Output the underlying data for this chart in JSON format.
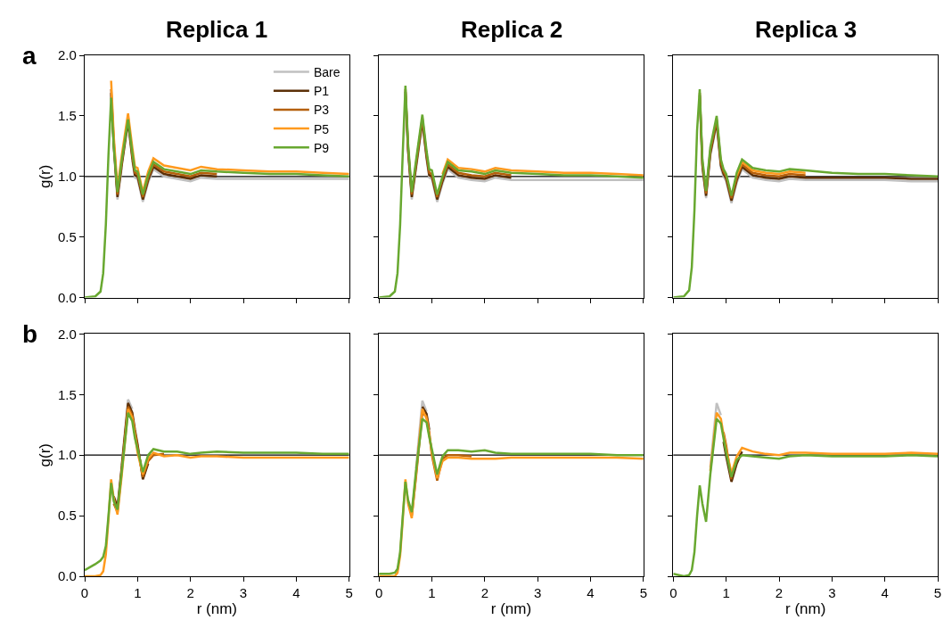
{
  "chart_data": [
    {
      "type": "line",
      "title": "Replica 1",
      "ylabel": "g(r)",
      "annotations": [
        "a"
      ],
      "legend": "top right",
      "tick_labels": "y",
      "xlim": [
        0,
        5
      ],
      "ylim": [
        0,
        2
      ],
      "xticks": [
        0,
        1,
        2,
        3,
        4,
        5
      ],
      "yticks": [
        {
          "value": 0,
          "label": "0.0"
        },
        {
          "value": 0.5,
          "label": "0.5"
        },
        {
          "value": 1,
          "label": "1.0"
        },
        {
          "value": 1.5,
          "label": "1.5"
        },
        {
          "value": 2,
          "label": "2.0"
        }
      ],
      "ref_lines": [
        {
          "axis": "y",
          "value": 1,
          "color": "#000000"
        }
      ],
      "x": [
        0,
        0.2,
        0.3,
        0.35,
        0.4,
        0.45,
        0.5,
        0.55,
        0.62,
        0.7,
        0.82,
        0.9,
        0.95,
        1.0,
        1.1,
        1.2,
        1.3,
        1.5,
        1.75,
        2.0,
        2.2,
        2.5,
        3,
        3.5,
        4,
        4.5,
        5
      ],
      "series": [
        {
          "name": "Bare",
          "color": "#c0c0c0",
          "values": [
            null,
            null,
            null,
            null,
            null,
            null,
            1.67,
            1.23,
            0.81,
            1.07,
            null,
            1.13,
            0.99,
            0.98,
            0.79,
            0.95,
            1.06,
            1.0,
            0.98,
            0.96,
            0.99,
            0.98,
            0.98,
            0.98,
            0.98,
            0.98,
            0.98
          ]
        },
        {
          "name": "P1",
          "color": "#5c3008",
          "values": [
            null,
            null,
            null,
            null,
            null,
            null,
            1.69,
            1.26,
            0.83,
            1.09,
            1.45,
            1.15,
            1.01,
            1.0,
            0.81,
            0.97,
            1.08,
            1.02,
            1.0,
            0.98,
            1.01,
            1.0,
            null,
            null,
            null,
            null,
            null
          ]
        },
        {
          "name": "P3",
          "color": "#b5600c",
          "values": [
            null,
            null,
            null,
            null,
            null,
            null,
            1.72,
            1.29,
            0.85,
            1.11,
            1.49,
            1.17,
            1.03,
            1.02,
            0.83,
            0.99,
            1.1,
            1.04,
            1.02,
            1.0,
            1.03,
            1.02,
            null,
            null,
            null,
            null,
            null
          ]
        },
        {
          "name": "P5",
          "color": "#ff9a1e",
          "values": [
            null,
            null,
            null,
            null,
            null,
            null,
            1.79,
            1.33,
            0.9,
            1.17,
            1.52,
            1.24,
            1.08,
            1.07,
            0.87,
            1.04,
            1.15,
            1.09,
            1.07,
            1.05,
            1.08,
            1.06,
            1.05,
            1.04,
            1.04,
            1.03,
            1.02
          ]
        },
        {
          "name": "P9",
          "color": "#68a830",
          "values": [
            0,
            0.01,
            0.05,
            0.2,
            0.6,
            1.18,
            1.65,
            1.25,
            0.87,
            1.13,
            1.47,
            1.2,
            1.05,
            1.04,
            0.85,
            1.01,
            1.12,
            1.06,
            1.04,
            1.02,
            1.05,
            1.04,
            1.03,
            1.02,
            1.02,
            1.01,
            1.0
          ]
        }
      ]
    },
    {
      "type": "line",
      "title": "Replica 2",
      "tick_labels": false,
      "xlim": [
        0,
        5
      ],
      "ylim": [
        0,
        2
      ],
      "xticks": [
        0,
        1,
        2,
        3,
        4,
        5
      ],
      "yticks": [
        0,
        0.5,
        1,
        1.5,
        2
      ],
      "ref_lines": [
        {
          "axis": "y",
          "value": 1,
          "color": "#000000"
        }
      ],
      "x": [
        0,
        0.2,
        0.3,
        0.35,
        0.4,
        0.45,
        0.5,
        0.55,
        0.62,
        0.7,
        0.82,
        0.9,
        0.95,
        1.0,
        1.1,
        1.2,
        1.3,
        1.5,
        1.75,
        2.0,
        2.2,
        2.5,
        3,
        3.5,
        4,
        4.5,
        5
      ],
      "series": [
        {
          "color": "#c0c0c0",
          "values": [
            null,
            null,
            null,
            null,
            null,
            null,
            1.68,
            1.2,
            0.81,
            1.06,
            1.44,
            1.14,
            0.99,
            0.98,
            0.79,
            0.94,
            1.06,
            0.99,
            0.97,
            0.96,
            0.99,
            0.97,
            0.97,
            0.97,
            0.97,
            0.97,
            0.97
          ]
        },
        {
          "color": "#5c3008",
          "values": [
            null,
            null,
            null,
            null,
            null,
            null,
            1.7,
            1.22,
            0.83,
            1.08,
            1.46,
            1.16,
            1.01,
            1.0,
            0.81,
            0.96,
            1.08,
            1.01,
            0.99,
            0.98,
            1.01,
            0.99,
            null,
            null,
            null,
            null,
            null
          ]
        },
        {
          "color": "#b5600c",
          "values": [
            null,
            null,
            null,
            null,
            null,
            null,
            1.72,
            1.24,
            0.85,
            1.1,
            1.48,
            1.18,
            1.03,
            1.02,
            0.83,
            0.98,
            1.1,
            1.03,
            1.01,
            1.0,
            1.03,
            1.01,
            null,
            null,
            null,
            null,
            null
          ]
        },
        {
          "color": "#ff9a1e",
          "values": [
            null,
            null,
            null,
            null,
            null,
            null,
            null,
            null,
            null,
            null,
            null,
            null,
            null,
            null,
            null,
            1.02,
            1.14,
            1.07,
            1.06,
            1.04,
            1.07,
            1.05,
            1.04,
            1.03,
            1.03,
            1.02,
            1.01
          ]
        },
        {
          "color": "#68a830",
          "values": [
            0,
            0.01,
            0.05,
            0.2,
            0.6,
            1.2,
            1.75,
            1.27,
            0.87,
            1.13,
            1.51,
            1.21,
            1.06,
            1.05,
            0.85,
            1.0,
            1.12,
            1.05,
            1.04,
            1.02,
            1.05,
            1.03,
            1.02,
            1.01,
            1.01,
            1.0,
            0.99
          ]
        }
      ]
    },
    {
      "type": "line",
      "title": "Replica 3",
      "tick_labels": false,
      "xlim": [
        0,
        5
      ],
      "ylim": [
        0,
        2
      ],
      "xticks": [
        0,
        1,
        2,
        3,
        4,
        5
      ],
      "yticks": [
        0,
        0.5,
        1,
        1.5,
        2
      ],
      "ref_lines": [
        {
          "axis": "y",
          "value": 1,
          "color": "#000000"
        }
      ],
      "x": [
        0,
        0.2,
        0.3,
        0.35,
        0.4,
        0.45,
        0.5,
        0.55,
        0.62,
        0.7,
        0.82,
        0.9,
        0.95,
        1.0,
        1.1,
        1.2,
        1.3,
        1.5,
        1.75,
        2.0,
        2.2,
        2.5,
        3,
        3.5,
        4,
        4.5,
        5
      ],
      "series": [
        {
          "color": "#c0c0c0",
          "values": [
            null,
            null,
            null,
            null,
            null,
            null,
            null,
            1.07,
            0.82,
            1.17,
            1.43,
            1.07,
            1.0,
            0.96,
            0.78,
            0.95,
            1.06,
            0.99,
            0.97,
            0.96,
            0.98,
            0.97,
            0.97,
            0.97,
            0.97,
            0.96,
            0.96
          ]
        },
        {
          "color": "#5c3008",
          "values": [
            null,
            null,
            null,
            null,
            null,
            null,
            1.67,
            1.09,
            0.84,
            1.19,
            1.45,
            1.09,
            1.02,
            0.98,
            0.8,
            0.97,
            1.08,
            1.01,
            0.99,
            0.98,
            1.0,
            0.99,
            0.99,
            0.99,
            0.99,
            0.98,
            0.98
          ]
        },
        {
          "color": "#b5600c",
          "values": [
            null,
            null,
            null,
            null,
            null,
            null,
            1.69,
            1.11,
            0.86,
            1.21,
            1.47,
            1.11,
            1.04,
            1.0,
            0.82,
            0.99,
            1.1,
            1.03,
            1.01,
            1.0,
            1.02,
            1.01,
            null,
            null,
            null,
            null,
            null
          ]
        },
        {
          "color": "#ff9a1e",
          "values": [
            null,
            null,
            null,
            null,
            null,
            null,
            null,
            null,
            null,
            null,
            null,
            null,
            null,
            null,
            null,
            1.01,
            1.12,
            1.05,
            1.03,
            1.02,
            1.04,
            1.03,
            null,
            null,
            null,
            null,
            null
          ]
        },
        {
          "color": "#68a830",
          "values": [
            0,
            0.01,
            0.06,
            0.25,
            0.72,
            1.38,
            1.72,
            1.14,
            0.88,
            1.24,
            1.5,
            1.14,
            1.06,
            1.02,
            0.84,
            1.03,
            1.14,
            1.07,
            1.05,
            1.04,
            1.06,
            1.05,
            1.03,
            1.02,
            1.02,
            1.01,
            1.0
          ]
        }
      ]
    },
    {
      "type": "line",
      "ylabel": "g(r)",
      "xlabel": "r (nm)",
      "annotations": [
        "b"
      ],
      "xlim": [
        0,
        5
      ],
      "ylim": [
        0,
        2
      ],
      "xticks": [
        0,
        1,
        2,
        3,
        4,
        5
      ],
      "yticks": [
        {
          "value": 0,
          "label": "0.0"
        },
        {
          "value": 0.5,
          "label": "0.5"
        },
        {
          "value": 1,
          "label": "1.0"
        },
        {
          "value": 1.5,
          "label": "1.5"
        },
        {
          "value": 2,
          "label": "2.0"
        }
      ],
      "ref_lines": [
        {
          "axis": "y",
          "value": 1,
          "color": "#000000"
        }
      ],
      "x": [
        0,
        0.2,
        0.3,
        0.35,
        0.4,
        0.45,
        0.5,
        0.55,
        0.62,
        0.7,
        0.82,
        0.9,
        0.95,
        1.0,
        1.1,
        1.2,
        1.3,
        1.5,
        1.75,
        2.0,
        2.2,
        2.5,
        3,
        3.5,
        4,
        4.5,
        5
      ],
      "series": [
        {
          "color": "#c0c0c0",
          "values": [
            null,
            null,
            null,
            null,
            null,
            null,
            null,
            null,
            null,
            0.92,
            1.46,
            1.38,
            null,
            null,
            null,
            null,
            null,
            null,
            null,
            null,
            null,
            null,
            null,
            null,
            null,
            null,
            null
          ]
        },
        {
          "color": "#5c3008",
          "values": [
            null,
            null,
            null,
            null,
            null,
            null,
            null,
            0.66,
            0.57,
            0.9,
            1.43,
            1.35,
            1.21,
            1.09,
            0.8,
            0.93,
            null,
            null,
            null,
            null,
            null,
            null,
            null,
            null,
            null,
            null,
            null
          ]
        },
        {
          "color": "#b5600c",
          "values": [
            null,
            null,
            null,
            null,
            null,
            null,
            null,
            0.6,
            0.53,
            0.88,
            1.4,
            1.33,
            1.19,
            1.07,
            0.82,
            0.95,
            1.0,
            1.01,
            null,
            null,
            null,
            null,
            null,
            null,
            null,
            null,
            null
          ]
        },
        {
          "color": "#ff9a1e",
          "values": [
            0,
            0,
            0.01,
            0.04,
            0.18,
            0.47,
            0.8,
            0.64,
            0.51,
            0.83,
            1.38,
            1.31,
            1.17,
            1.02,
            0.84,
            0.97,
            1.02,
            0.99,
            1.0,
            0.98,
            0.99,
            0.99,
            0.98,
            0.98,
            0.98,
            0.98,
            0.98
          ]
        },
        {
          "color": "#68a830",
          "values": [
            0.05,
            0.1,
            0.13,
            0.16,
            0.25,
            0.5,
            0.77,
            0.62,
            0.55,
            0.86,
            1.35,
            1.28,
            1.14,
            1.05,
            0.86,
            1.0,
            1.05,
            1.03,
            1.03,
            1.01,
            1.02,
            1.03,
            1.02,
            1.02,
            1.02,
            1.01,
            1.01
          ]
        }
      ]
    },
    {
      "type": "line",
      "xlabel": "r (nm)",
      "tick_labels": "x",
      "xlim": [
        0,
        5
      ],
      "ylim": [
        0,
        2
      ],
      "xticks": [
        0,
        1,
        2,
        3,
        4,
        5
      ],
      "yticks": [
        0,
        0.5,
        1,
        1.5,
        2
      ],
      "ref_lines": [
        {
          "axis": "y",
          "value": 1,
          "color": "#000000"
        }
      ],
      "x": [
        0,
        0.2,
        0.3,
        0.35,
        0.4,
        0.45,
        0.5,
        0.55,
        0.62,
        0.7,
        0.82,
        0.9,
        0.95,
        1.0,
        1.1,
        1.2,
        1.3,
        1.5,
        1.75,
        2.0,
        2.2,
        2.5,
        3,
        3.5,
        4,
        4.5,
        5
      ],
      "series": [
        {
          "color": "#c0c0c0",
          "values": [
            null,
            null,
            null,
            null,
            null,
            null,
            null,
            null,
            null,
            0.89,
            1.45,
            1.36,
            null,
            null,
            null,
            null,
            null,
            null,
            null,
            null,
            null,
            null,
            null,
            null,
            null,
            null,
            null
          ]
        },
        {
          "color": "#5c3008",
          "values": [
            null,
            null,
            null,
            null,
            null,
            null,
            null,
            null,
            null,
            null,
            1.4,
            1.34,
            1.21,
            null,
            null,
            null,
            null,
            null,
            null,
            null,
            null,
            null,
            null,
            null,
            null,
            null,
            null
          ]
        },
        {
          "color": "#b5600c",
          "values": [
            null,
            null,
            null,
            null,
            null,
            null,
            null,
            null,
            0.5,
            0.82,
            1.35,
            1.32,
            1.19,
            1.0,
            0.79,
            0.97,
            1.0,
            1.0,
            0.99,
            null,
            null,
            null,
            null,
            null,
            null,
            null,
            null
          ]
        },
        {
          "color": "#ff9a1e",
          "values": [
            0,
            0,
            0,
            0.03,
            0.17,
            0.47,
            0.8,
            0.6,
            0.48,
            0.84,
            1.38,
            1.3,
            1.17,
            1.02,
            0.81,
            0.95,
            0.98,
            0.98,
            0.97,
            0.97,
            0.97,
            0.98,
            0.98,
            0.98,
            0.98,
            0.98,
            0.97
          ]
        },
        {
          "color": "#68a830",
          "values": [
            0.02,
            0.02,
            0.03,
            0.06,
            0.2,
            0.5,
            0.78,
            0.63,
            0.53,
            0.87,
            1.3,
            1.27,
            1.15,
            1.05,
            0.84,
            0.99,
            1.04,
            1.04,
            1.03,
            1.04,
            1.02,
            1.01,
            1.01,
            1.01,
            1.01,
            1.0,
            1.0
          ]
        }
      ]
    },
    {
      "type": "line",
      "xlabel": "r (nm)",
      "tick_labels": "x",
      "xlim": [
        0,
        5
      ],
      "ylim": [
        0,
        2
      ],
      "xticks": [
        0,
        1,
        2,
        3,
        4,
        5
      ],
      "yticks": [
        0,
        0.5,
        1,
        1.5,
        2
      ],
      "ref_lines": [
        {
          "axis": "y",
          "value": 1,
          "color": "#000000"
        }
      ],
      "x": [
        0,
        0.2,
        0.3,
        0.35,
        0.4,
        0.45,
        0.5,
        0.55,
        0.62,
        0.7,
        0.82,
        0.9,
        0.95,
        1.0,
        1.1,
        1.2,
        1.3,
        1.5,
        1.75,
        2.0,
        2.2,
        2.5,
        3,
        3.5,
        4,
        4.5,
        5
      ],
      "series": [
        {
          "color": "#c0c0c0",
          "values": [
            null,
            null,
            null,
            null,
            null,
            null,
            null,
            null,
            null,
            0.9,
            1.43,
            1.33,
            null,
            null,
            null,
            null,
            null,
            null,
            null,
            null,
            null,
            null,
            null,
            null,
            null,
            null,
            null
          ]
        },
        {
          "color": "#5c3008",
          "values": [
            null,
            null,
            null,
            null,
            null,
            null,
            null,
            null,
            null,
            null,
            null,
            null,
            1.11,
            0.99,
            0.78,
            0.93,
            1.03,
            null,
            null,
            null,
            null,
            null,
            null,
            null,
            null,
            null,
            null
          ]
        },
        {
          "color": "#b5600c",
          "values": [
            null,
            null,
            null,
            null,
            null,
            null,
            null,
            null,
            null,
            null,
            null,
            null,
            1.19,
            1.08,
            0.8,
            null,
            null,
            null,
            null,
            null,
            null,
            null,
            null,
            null,
            null,
            null,
            null
          ]
        },
        {
          "color": "#ff9a1e",
          "values": [
            null,
            null,
            null,
            null,
            null,
            null,
            null,
            null,
            null,
            0.87,
            1.35,
            1.3,
            1.17,
            1.05,
            0.85,
            0.99,
            1.06,
            1.03,
            1.01,
            1.0,
            1.02,
            1.02,
            1.01,
            1.01,
            1.01,
            1.02,
            1.01
          ]
        },
        {
          "color": "#68a830",
          "values": [
            0.02,
            0,
            0.01,
            0.05,
            0.2,
            0.5,
            0.75,
            0.6,
            0.45,
            0.84,
            1.3,
            1.26,
            1.14,
            1.02,
            0.82,
            0.96,
            1.0,
            0.99,
            0.98,
            0.97,
            0.99,
            1.0,
            0.99,
            0.99,
            0.99,
            1.0,
            0.99
          ]
        }
      ]
    }
  ]
}
